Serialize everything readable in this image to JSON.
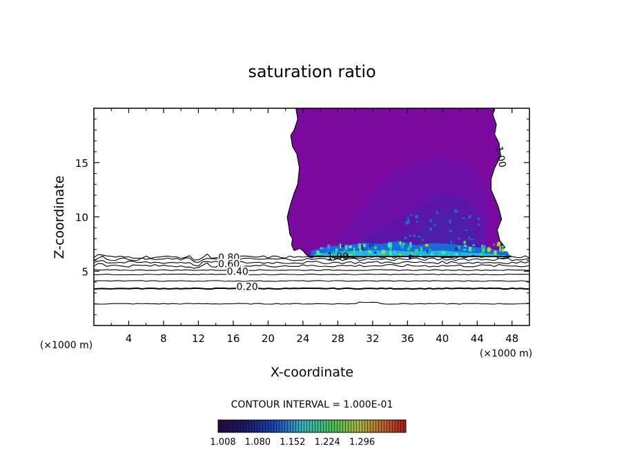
{
  "chart_data": {
    "type": "contour",
    "title": "saturation ratio",
    "xlabel": "X-coordinate",
    "ylabel": "Z-coordinate",
    "x_unit": "(×1000 m)",
    "y_unit": "(×1000 m)",
    "xlim": [
      0,
      50
    ],
    "ylim": [
      0,
      20
    ],
    "x_ticks": [
      4,
      8,
      12,
      16,
      20,
      24,
      28,
      32,
      36,
      40,
      44,
      48
    ],
    "y_ticks": [
      5,
      10,
      15
    ],
    "contour_interval_text": "CONTOUR INTERVAL = 1.000E-01",
    "contour_labels": [
      {
        "text": "0.80",
        "x": 15.5,
        "y": 6.1
      },
      {
        "text": "0.60",
        "x": 15.5,
        "y": 5.5
      },
      {
        "text": "0.40",
        "x": 16.5,
        "y": 4.8
      },
      {
        "text": "0.20",
        "x": 17.6,
        "y": 3.4
      },
      {
        "text": "1.00",
        "x": 28.0,
        "y": 6.2
      },
      {
        "text": "1.00",
        "x": 46.5,
        "y": 15.5
      }
    ],
    "contour_lines": [
      {
        "level": 0.1,
        "z": 2.0
      },
      {
        "level": 0.2,
        "z": 3.4
      },
      {
        "level": 0.3,
        "z": 4.1
      },
      {
        "level": 0.4,
        "z": 4.7
      },
      {
        "level": 0.5,
        "z": 5.1
      },
      {
        "level": 0.6,
        "z": 5.5
      },
      {
        "level": 0.7,
        "z": 5.8
      },
      {
        "level": 0.8,
        "z": 6.1
      },
      {
        "level": 0.9,
        "z": 6.3
      }
    ],
    "supersaturated_region": {
      "x_left_top": 23.2,
      "x_right_top": 46.0,
      "z_base": 6.4,
      "z_top": 20
    },
    "colorbar": {
      "ticks": [
        "1.008",
        "1.080",
        "1.152",
        "1.224",
        "1.296"
      ],
      "colors": [
        "#3a0a55",
        "#1a1a7a",
        "#1144cc",
        "#11aacc",
        "#22cc55",
        "#aacc22",
        "#cc7711",
        "#cc2211"
      ]
    },
    "grid": false
  }
}
